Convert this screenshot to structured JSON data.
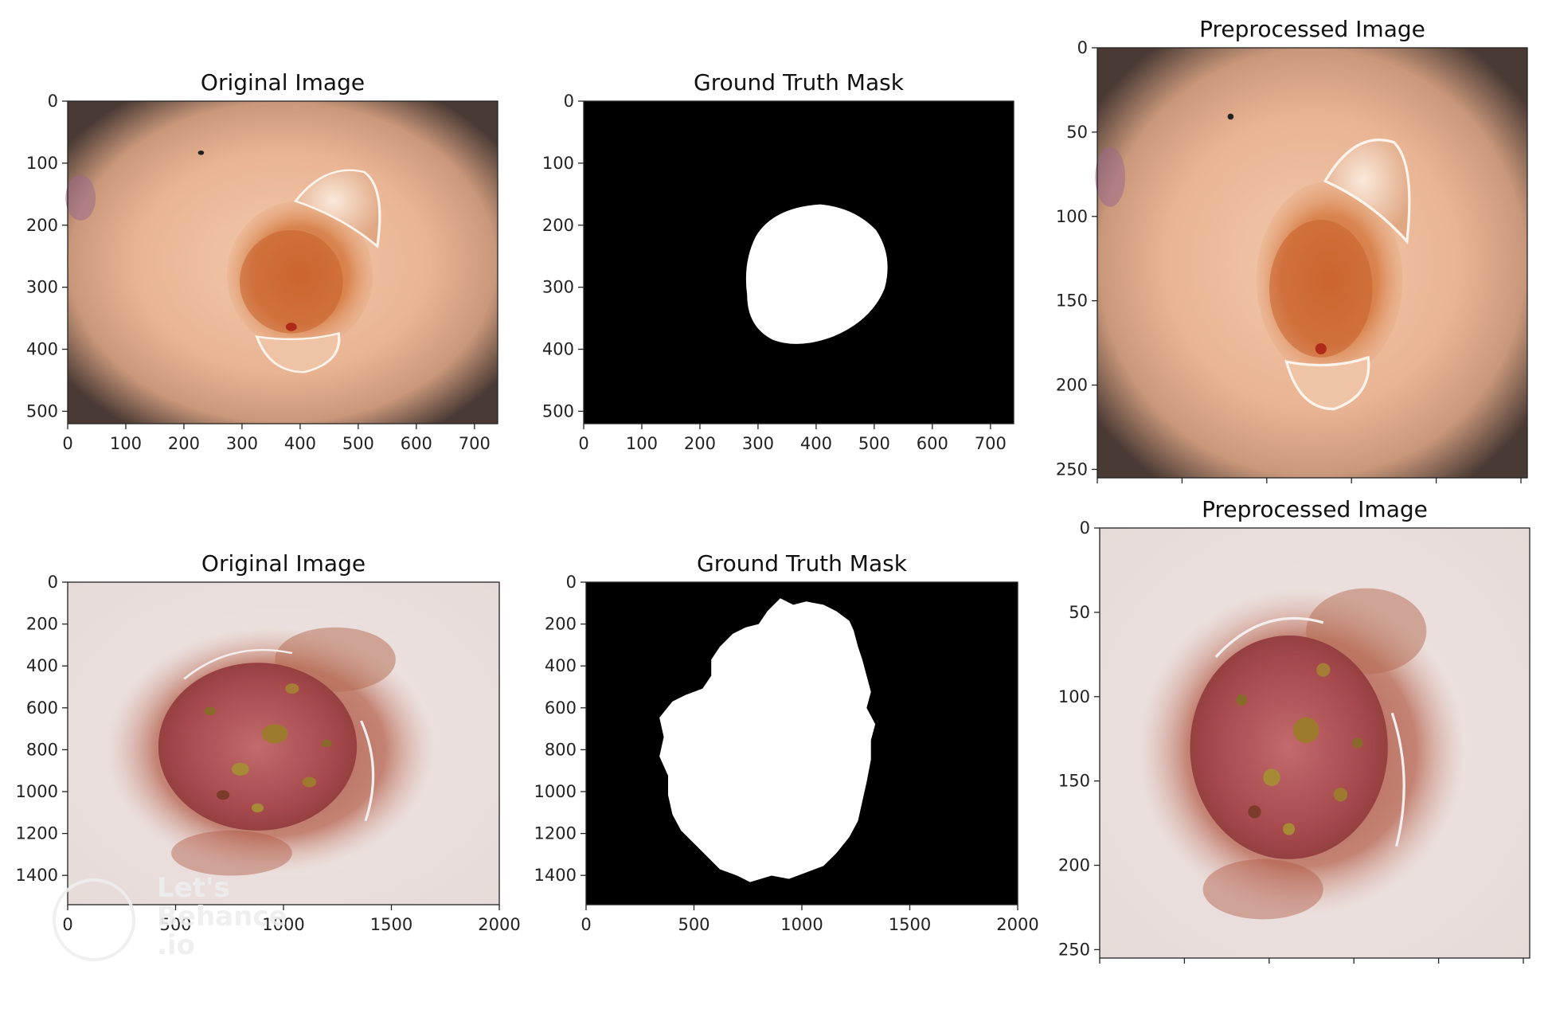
{
  "figure": {
    "panels": [
      {
        "id": "original-1",
        "title": "Original Image",
        "kind": "lesion-light",
        "x_ticks": [
          "0",
          "100",
          "200",
          "300",
          "400",
          "500",
          "600",
          "700"
        ],
        "y_ticks": [
          "0",
          "100",
          "200",
          "300",
          "400",
          "500"
        ]
      },
      {
        "id": "mask-1",
        "title": "Ground Truth Mask",
        "kind": "mask-round",
        "x_ticks": [
          "0",
          "100",
          "200",
          "300",
          "400",
          "500",
          "600",
          "700"
        ],
        "y_ticks": [
          "0",
          "100",
          "200",
          "300",
          "400",
          "500"
        ]
      },
      {
        "id": "preprocessed-1",
        "title": "Preprocessed Image",
        "kind": "lesion-light",
        "x_ticks": [],
        "y_ticks": [
          "0",
          "50",
          "100",
          "150",
          "200",
          "250"
        ]
      },
      {
        "id": "original-2",
        "title": "Original Image",
        "kind": "lesion-dark",
        "x_ticks": [
          "0",
          "500",
          "1000",
          "1500",
          "2000"
        ],
        "y_ticks": [
          "0",
          "200",
          "400",
          "600",
          "800",
          "1000",
          "1200",
          "1400"
        ]
      },
      {
        "id": "mask-2",
        "title": "Ground Truth Mask",
        "kind": "mask-irregular",
        "x_ticks": [
          "0",
          "500",
          "1000",
          "1500",
          "2000"
        ],
        "y_ticks": [
          "0",
          "200",
          "400",
          "600",
          "800",
          "1000",
          "1200",
          "1400"
        ]
      },
      {
        "id": "preprocessed-2",
        "title": "Preprocessed Image",
        "kind": "lesion-dark",
        "x_ticks": [],
        "y_ticks": [
          "0",
          "50",
          "100",
          "150",
          "200",
          "250"
        ]
      }
    ],
    "watermark": [
      "Let's",
      "Behance",
      ".io"
    ]
  }
}
